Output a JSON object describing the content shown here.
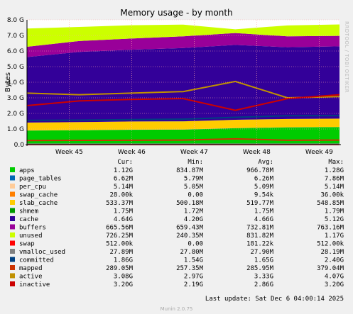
{
  "chart_data": {
    "type": "area",
    "title": "Memory usage - by month",
    "ylabel": "Bytes",
    "ylim": [
      0,
      8
    ],
    "y_unit": "G",
    "y_ticks": [
      "0.0",
      "1.0 G",
      "2.0 G",
      "3.0 G",
      "4.0 G",
      "5.0 G",
      "6.0 G",
      "7.0 G",
      "8.0 G"
    ],
    "x_ticks": [
      "Week 45",
      "Week 46",
      "Week 47",
      "Week 48",
      "Week 49"
    ],
    "grid": true,
    "vertical_label": "RRDTOOL / TOBI OETIKER",
    "stacked_series": [
      {
        "name": "apps",
        "color": "#00cc00",
        "values": [
          0.9,
          0.92,
          0.95,
          0.96,
          1.05,
          1.1,
          1.12
        ]
      },
      {
        "name": "page_tables",
        "color": "#0066b3",
        "values": [
          0.006,
          0.006,
          0.006,
          0.006,
          0.006,
          0.007,
          0.007
        ]
      },
      {
        "name": "per_cpu",
        "color": "#ff8000",
        "values": [
          0.005,
          0.005,
          0.005,
          0.005,
          0.005,
          0.005,
          0.005
        ]
      },
      {
        "name": "swap_cache",
        "color": "#ffcc00",
        "values": [
          0.0,
          0.0,
          0.0,
          0.0,
          0.0,
          0.0,
          3e-05
        ]
      },
      {
        "name": "slab_cache",
        "color": "#ffcc00",
        "values": [
          0.5,
          0.51,
          0.52,
          0.52,
          0.53,
          0.53,
          0.53
        ]
      },
      {
        "name": "shmem",
        "color": "#009900",
        "values": [
          0.0017,
          0.0017,
          0.0018,
          0.0018,
          0.0018,
          0.0018,
          0.0018
        ]
      },
      {
        "name": "cache",
        "color": "#330099",
        "values": [
          4.2,
          4.5,
          4.6,
          4.7,
          4.8,
          4.6,
          4.64
        ]
      },
      {
        "name": "buffers",
        "color": "#990099",
        "values": [
          0.66,
          0.7,
          0.72,
          0.75,
          0.76,
          0.7,
          0.67
        ]
      },
      {
        "name": "unused",
        "color": "#ccff00",
        "values": [
          1.17,
          0.9,
          0.85,
          0.75,
          0.24,
          0.7,
          0.73
        ]
      }
    ],
    "line_series": [
      {
        "name": "swap",
        "color": "#ff0000",
        "values": [
          0.0,
          0.0,
          0.0,
          0.0,
          0.0,
          0.0,
          0.0005
        ]
      },
      {
        "name": "vmalloc_used",
        "color": "#808080",
        "values": [
          0.028,
          0.028,
          0.028,
          0.028,
          0.028,
          0.028,
          0.028
        ]
      },
      {
        "name": "committed",
        "color": "#004080",
        "values": [
          1.55,
          1.57,
          1.6,
          1.63,
          1.75,
          1.85,
          1.86
        ]
      },
      {
        "name": "mapped",
        "color": "#cc3300",
        "values": [
          0.26,
          0.27,
          0.28,
          0.29,
          0.37,
          0.28,
          0.29
        ]
      },
      {
        "name": "active",
        "color": "#c09000",
        "values": [
          3.3,
          3.2,
          3.3,
          3.4,
          4.05,
          3.0,
          3.08
        ]
      },
      {
        "name": "inactive",
        "color": "#cc0000",
        "values": [
          2.5,
          2.8,
          2.9,
          2.95,
          2.2,
          2.95,
          3.2
        ]
      }
    ]
  },
  "legend": {
    "headers": {
      "cur": "Cur:",
      "min": "Min:",
      "avg": "Avg:",
      "max": "Max:"
    },
    "rows": [
      {
        "name": "apps",
        "color": "#00cc00",
        "cur": "1.12G",
        "min": "834.87M",
        "avg": "966.78M",
        "max": "1.28G"
      },
      {
        "name": "page_tables",
        "color": "#0066b3",
        "cur": "6.62M",
        "min": "5.79M",
        "avg": "6.26M",
        "max": "7.86M"
      },
      {
        "name": "per_cpu",
        "color": "#ffcc99",
        "cur": "5.14M",
        "min": "5.05M",
        "avg": "5.09M",
        "max": "5.14M"
      },
      {
        "name": "swap_cache",
        "color": "#ff8000",
        "cur": "28.00k",
        "min": "0.00",
        "avg": "9.54k",
        "max": "36.00k"
      },
      {
        "name": "slab_cache",
        "color": "#ffcc00",
        "cur": "533.37M",
        "min": "500.18M",
        "avg": "519.77M",
        "max": "548.85M"
      },
      {
        "name": "shmem",
        "color": "#009900",
        "cur": "1.75M",
        "min": "1.72M",
        "avg": "1.75M",
        "max": "1.79M"
      },
      {
        "name": "cache",
        "color": "#330099",
        "cur": "4.64G",
        "min": "4.20G",
        "avg": "4.66G",
        "max": "5.12G"
      },
      {
        "name": "buffers",
        "color": "#990099",
        "cur": "665.56M",
        "min": "659.43M",
        "avg": "732.81M",
        "max": "763.16M"
      },
      {
        "name": "unused",
        "color": "#ccff00",
        "cur": "726.25M",
        "min": "240.35M",
        "avg": "831.82M",
        "max": "1.17G"
      },
      {
        "name": "swap",
        "color": "#ff0000",
        "cur": "512.00k",
        "min": "0.00",
        "avg": "181.22k",
        "max": "512.00k"
      },
      {
        "name": "vmalloc_used",
        "color": "#808080",
        "cur": "27.89M",
        "min": "27.80M",
        "avg": "27.90M",
        "max": "28.19M"
      },
      {
        "name": "committed",
        "color": "#004080",
        "cur": "1.86G",
        "min": "1.54G",
        "avg": "1.65G",
        "max": "2.40G"
      },
      {
        "name": "mapped",
        "color": "#cc3300",
        "cur": "289.05M",
        "min": "257.35M",
        "avg": "285.95M",
        "max": "379.04M"
      },
      {
        "name": "active",
        "color": "#c09000",
        "cur": "3.08G",
        "min": "2.97G",
        "avg": "3.33G",
        "max": "4.07G"
      },
      {
        "name": "inactive",
        "color": "#cc0000",
        "cur": "3.20G",
        "min": "2.19G",
        "avg": "2.86G",
        "max": "3.20G"
      }
    ]
  },
  "footer": {
    "last_update": "Last update: Sat Dec  6 04:00:14 2025",
    "munin_version": "Munin 2.0.75"
  }
}
